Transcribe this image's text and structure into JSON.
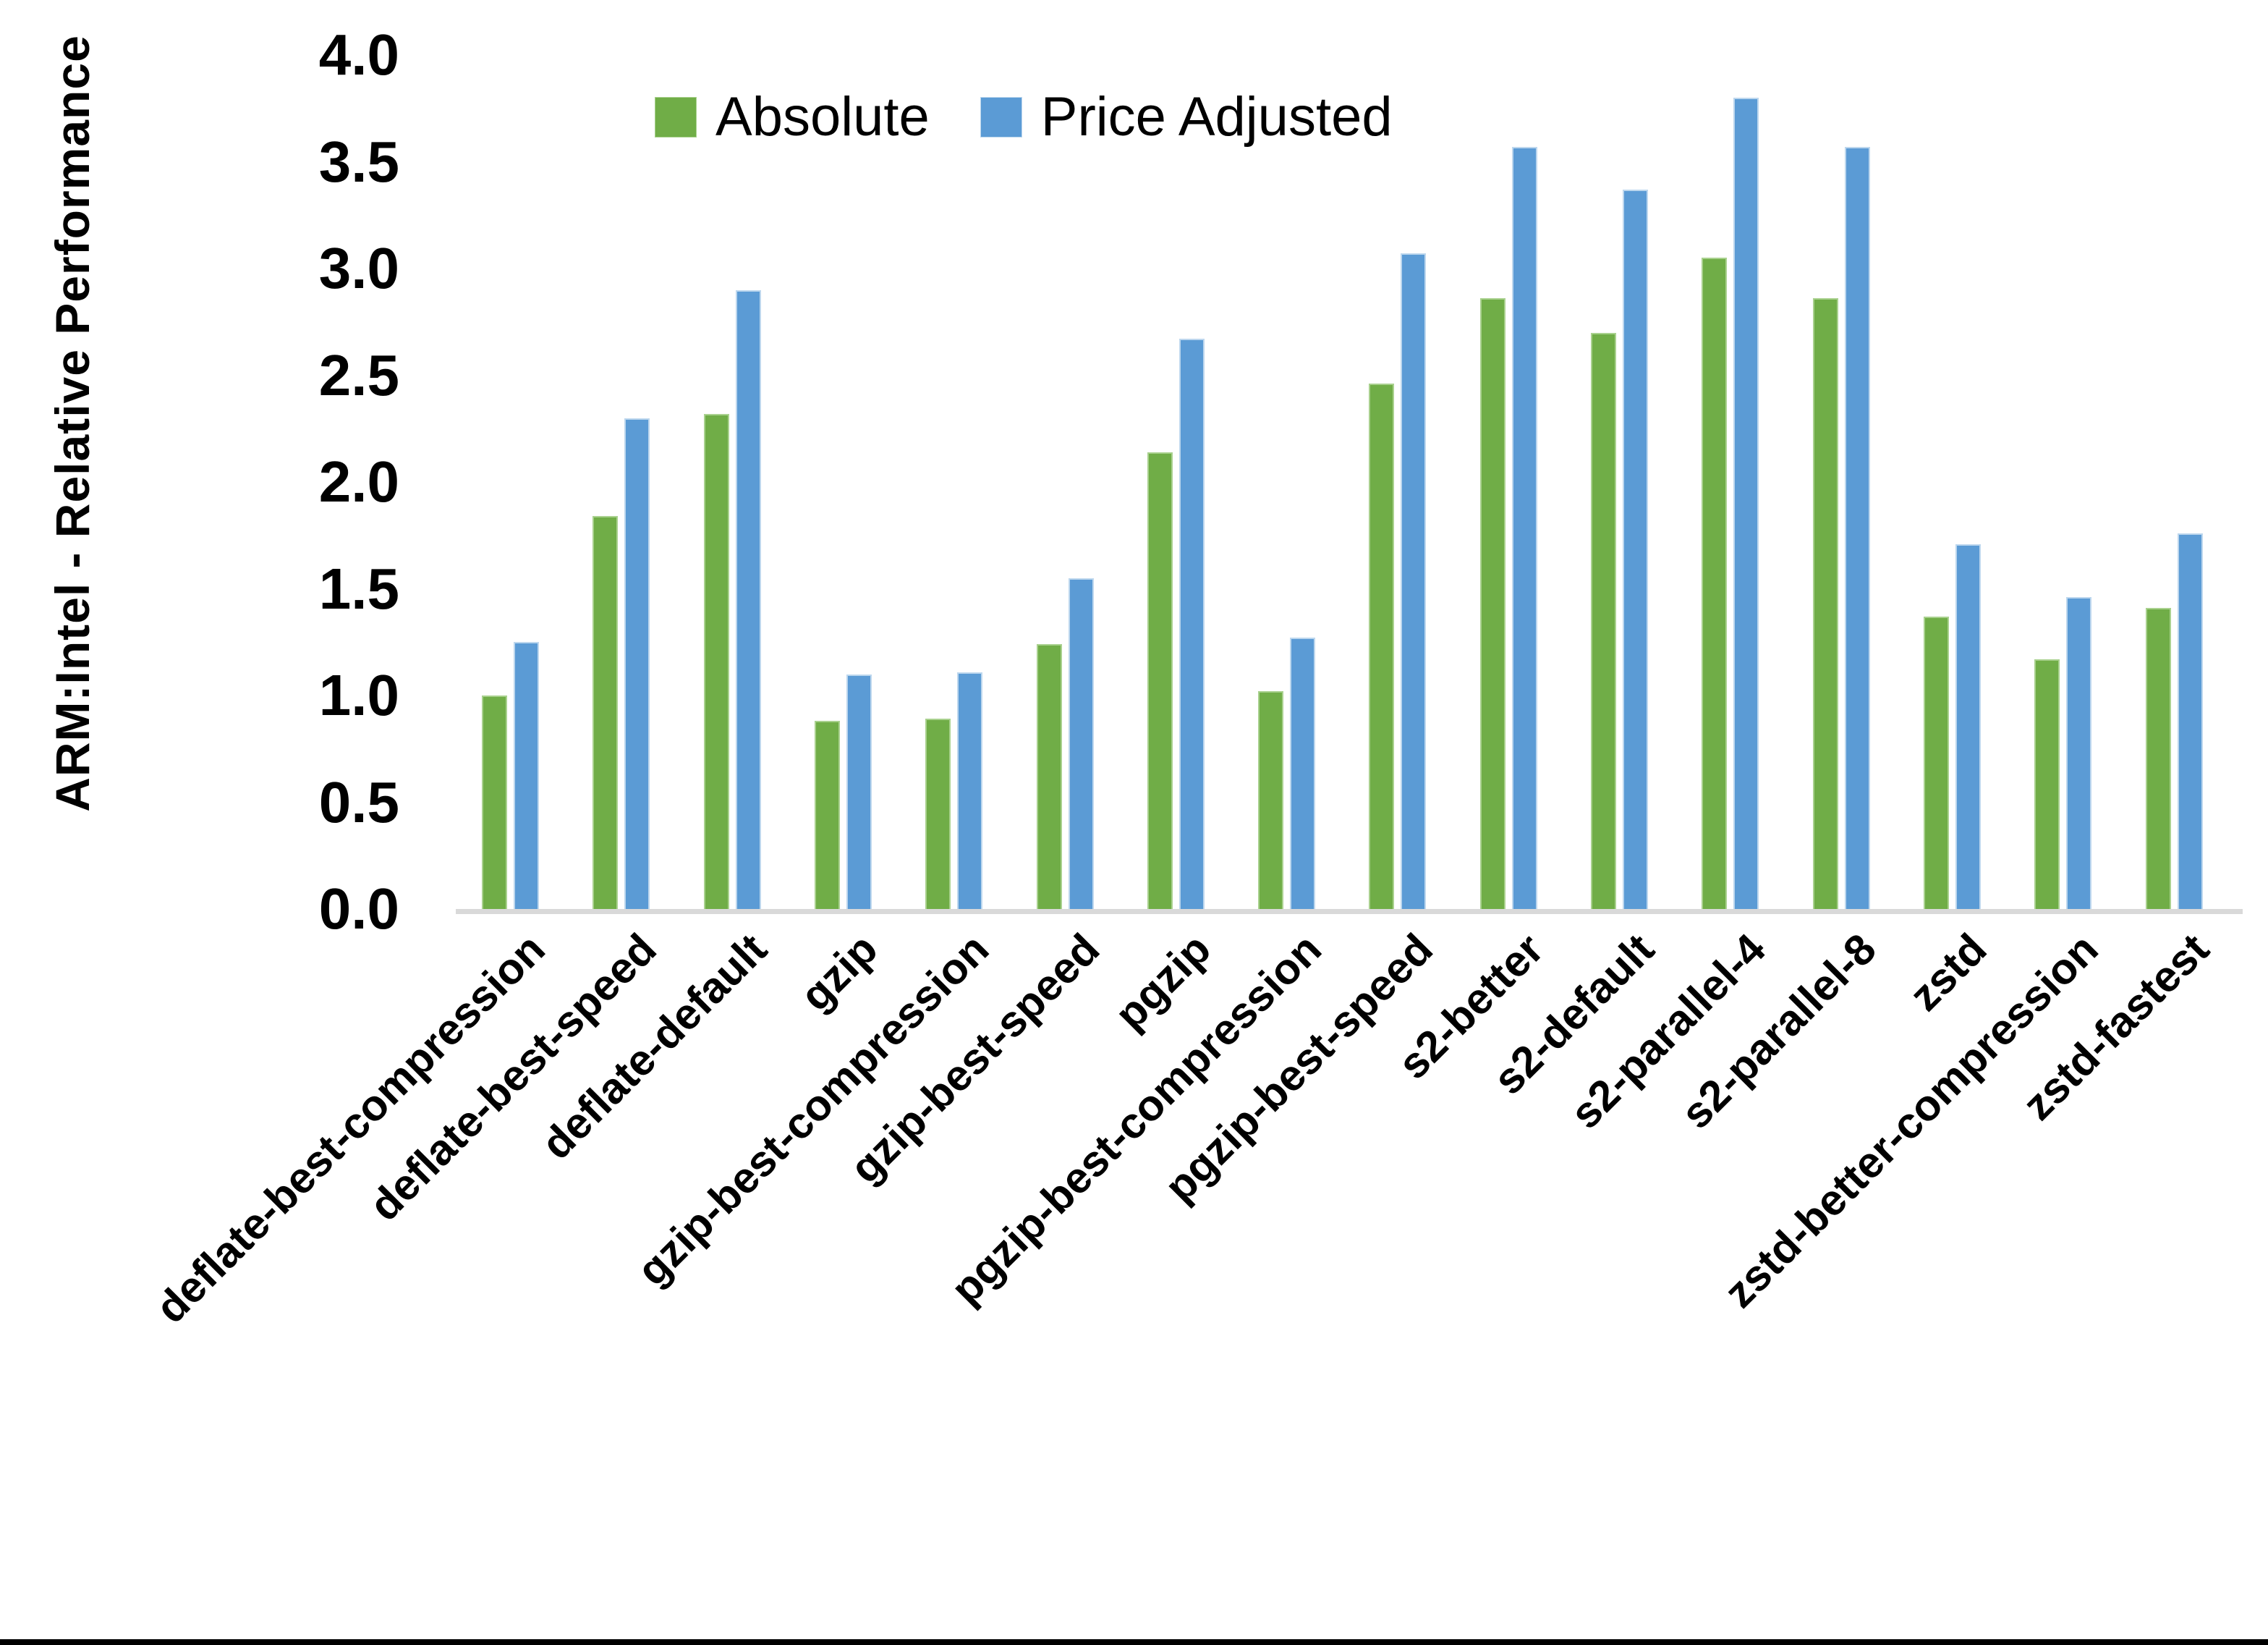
{
  "figure": {
    "y_axis_title": "ARM:Intel - Relative Performance",
    "background_color": "#ffffff",
    "axis_line_color": "#d9d9d9",
    "bottom_border_color": "#000000",
    "legend": {
      "items": [
        {
          "label": "Absolute",
          "color": "#70AD47",
          "border_color": "#A9D18E"
        },
        {
          "label": "Price Adjusted",
          "color": "#5B9BD5",
          "border_color": "#BDD7EE"
        }
      ]
    }
  },
  "chart_data": {
    "type": "bar",
    "title": "",
    "xlabel": "",
    "ylabel": "ARM:Intel - Relative Performance",
    "ylim": [
      0.0,
      4.0
    ],
    "ytick_step": 0.5,
    "ytick_labels": [
      "0.0",
      "0.5",
      "1.0",
      "1.5",
      "2.0",
      "2.5",
      "3.0",
      "3.5",
      "4.0"
    ],
    "grid": false,
    "legend_position": "top-center",
    "categories": [
      "deflate-best-compression",
      "deflate-best-speed",
      "deflate-default",
      "gzip",
      "gzip-best-compression",
      "gzip-best-speed",
      "pgzip",
      "pgzip-best-compression",
      "pgzip-best-speed",
      "s2-better",
      "s2-default",
      "s2-parallel-4",
      "s2-parallel-8",
      "zstd",
      "zstd-better-compression",
      "zstd-fastest"
    ],
    "series": [
      {
        "name": "Absolute",
        "color": "#70AD47",
        "border_color": "#A9D18E",
        "values": [
          1.0,
          1.84,
          2.32,
          0.88,
          0.89,
          1.24,
          2.14,
          1.02,
          2.46,
          2.86,
          2.7,
          3.05,
          2.86,
          1.37,
          1.17,
          1.41
        ]
      },
      {
        "name": "Price Adjusted",
        "color": "#5B9BD5",
        "border_color": "#BDD7EE",
        "values": [
          1.25,
          2.3,
          2.9,
          1.1,
          1.11,
          1.55,
          2.67,
          1.27,
          3.07,
          3.57,
          3.37,
          3.8,
          3.57,
          1.71,
          1.46,
          1.76
        ]
      }
    ]
  }
}
